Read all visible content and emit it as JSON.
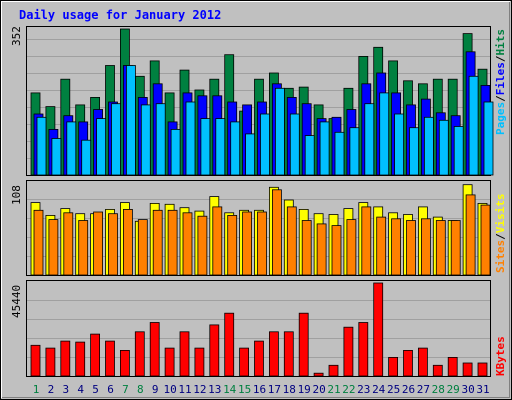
{
  "colors": {
    "frame_bg": "#c0c0c0",
    "hits": "#008040",
    "files": "#0000ff",
    "pages": "#00c0ff",
    "visits": "#ffff00",
    "sites": "#ff8000",
    "kbytes": "#ff0000",
    "title": "#0000ff",
    "weekend_label": "#008040",
    "weekday_label": "#000080"
  },
  "chart_data": {
    "type": "bar",
    "title": "Daily usage for January 2012",
    "categories": [
      "1",
      "2",
      "3",
      "4",
      "5",
      "6",
      "7",
      "8",
      "9",
      "10",
      "11",
      "12",
      "13",
      "14",
      "15",
      "16",
      "17",
      "18",
      "19",
      "20",
      "21",
      "22",
      "23",
      "24",
      "25",
      "26",
      "27",
      "28",
      "29",
      "30",
      "31"
    ],
    "weekend_days": [
      "1",
      "7",
      "8",
      "14",
      "15",
      "21",
      "22",
      "28",
      "29"
    ],
    "panels": [
      {
        "id": "top",
        "max_label": "352",
        "ylim": [
          0,
          352
        ],
        "legend": [
          "Pages",
          "/",
          "Files",
          "/",
          "Hits"
        ],
        "series": [
          {
            "name": "Hits",
            "values": [
              198,
              165,
              231,
              169,
              187,
              264,
              352,
              238,
              275,
              198,
              253,
              205,
              231,
              290,
              154,
              231,
              246,
              209,
              212,
              169,
              136,
              209,
              286,
              308,
              275,
              227,
              220,
              231,
              231,
              341,
              255
            ]
          },
          {
            "name": "Files",
            "values": [
              147,
              110,
              143,
              128,
              158,
              176,
              264,
              187,
              220,
              128,
              198,
              191,
              191,
              176,
              169,
              176,
              220,
              187,
              172,
              136,
              139,
              158,
              220,
              246,
              198,
              169,
              183,
              150,
              143,
              297,
              216
            ]
          },
          {
            "name": "Pages",
            "values": [
              139,
              88,
              128,
              84,
              136,
              172,
              264,
              169,
              172,
              110,
              176,
              136,
              136,
              128,
              99,
              147,
              209,
              147,
              95,
              128,
              103,
              114,
              172,
              198,
              147,
              114,
              139,
              132,
              117,
              238,
              176
            ]
          }
        ]
      },
      {
        "id": "middle",
        "max_label": "108",
        "ylim": [
          0,
          108
        ],
        "legend": [
          "Sites",
          "/",
          "Visits"
        ],
        "series": [
          {
            "name": "Visits",
            "values": [
              85,
              70,
              78,
              72,
              72,
              77,
              85,
              63,
              84,
              83,
              79,
              75,
              92,
              73,
              76,
              76,
              103,
              88,
              77,
              72,
              71,
              78,
              85,
              80,
              73,
              71,
              80,
              68,
              64,
              106,
              84
            ]
          },
          {
            "name": "Sites",
            "values": [
              76,
              65,
              73,
              64,
              74,
              72,
              77,
              65,
              76,
              76,
              73,
              69,
              80,
              70,
              74,
              74,
              100,
              80,
              64,
              60,
              58,
              65,
              80,
              68,
              66,
              64,
              66,
              64,
              64,
              94,
              82
            ]
          }
        ]
      },
      {
        "id": "bottom",
        "max_label": "45440",
        "ylim": [
          0,
          45440
        ],
        "legend": [
          "KBytes"
        ],
        "series": [
          {
            "name": "KBytes",
            "values": [
              14995,
              13632,
              17040,
              16586,
              20448,
              17040,
              12496,
              21584,
              26128,
              13632,
              21584,
              13632,
              24992,
              30672,
              13632,
              17040,
              21584,
              21584,
              30672,
              1363,
              5226,
              23856,
              26128,
              45440,
              9088,
              12496,
              13632,
              5226,
              9088,
              6362,
              6362
            ]
          }
        ]
      }
    ]
  }
}
